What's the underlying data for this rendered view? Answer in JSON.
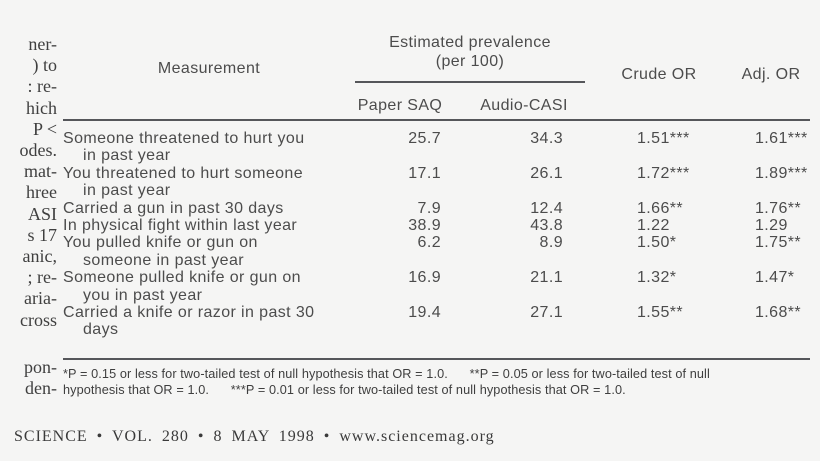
{
  "colors": {
    "background": "#f5f5f4",
    "text": "#4c4c4c",
    "rule": "#55565a"
  },
  "left_column": {
    "fragments": [
      "ner-",
      ") to",
      ": re-",
      "hich",
      "P <",
      "odes.",
      "mat-",
      "hree",
      "ASI",
      "s 17",
      "anic,",
      "; re-",
      "aria-",
      "cross",
      "pon-",
      "den-"
    ]
  },
  "table": {
    "header": {
      "measurement": "Measurement",
      "spanner_line1": "Estimated prevalence",
      "spanner_line2": "(per 100)",
      "sub_col_1": "Paper SAQ",
      "sub_col_2": "Audio-CASI",
      "crude_or": "Crude OR",
      "adj_or": "Adj. OR"
    },
    "rows": [
      {
        "line1": "Someone threatened to hurt you",
        "line2": "in past year",
        "paper_saq": "25.7",
        "audio_casi": "34.3",
        "crude_or": "1.51***",
        "adj_or": "1.61***"
      },
      {
        "line1": "You threatened to hurt someone",
        "line2": "in past year",
        "paper_saq": "17.1",
        "audio_casi": "26.1",
        "crude_or": "1.72***",
        "adj_or": "1.89***"
      },
      {
        "line1": "Carried a gun in past 30 days",
        "line2": "",
        "paper_saq": "7.9",
        "audio_casi": "12.4",
        "crude_or": "1.66**",
        "adj_or": "1.76**"
      },
      {
        "line1": "In physical fight within last year",
        "line2": "",
        "paper_saq": "38.9",
        "audio_casi": "43.8",
        "crude_or": "1.22",
        "adj_or": "1.29"
      },
      {
        "line1": "You pulled knife or gun on",
        "line2": "someone in past year",
        "paper_saq": "6.2",
        "audio_casi": "8.9",
        "crude_or": "1.50*",
        "adj_or": "1.75**"
      },
      {
        "line1": "Someone pulled knife or gun on",
        "line2": "you in past year",
        "paper_saq": "16.9",
        "audio_casi": "21.1",
        "crude_or": "1.32*",
        "adj_or": "1.47*"
      },
      {
        "line1": "Carried a knife or razor in past 30",
        "line2": "days",
        "paper_saq": "19.4",
        "audio_casi": "27.1",
        "crude_or": "1.55**",
        "adj_or": "1.68**"
      }
    ],
    "footnotes": {
      "line1": "*P = 0.15 or less for two-tailed test of null hypothesis that OR = 1.0.      **P = 0.05 or less for two-tailed test of null",
      "line2": "hypothesis that OR = 1.0.      ***P = 0.01 or less for two-tailed test of null hypothesis that OR = 1.0."
    }
  },
  "footer": {
    "text": "SCIENCE • VOL. 280 • 8 MAY 1998 • www.sciencemag.org"
  }
}
